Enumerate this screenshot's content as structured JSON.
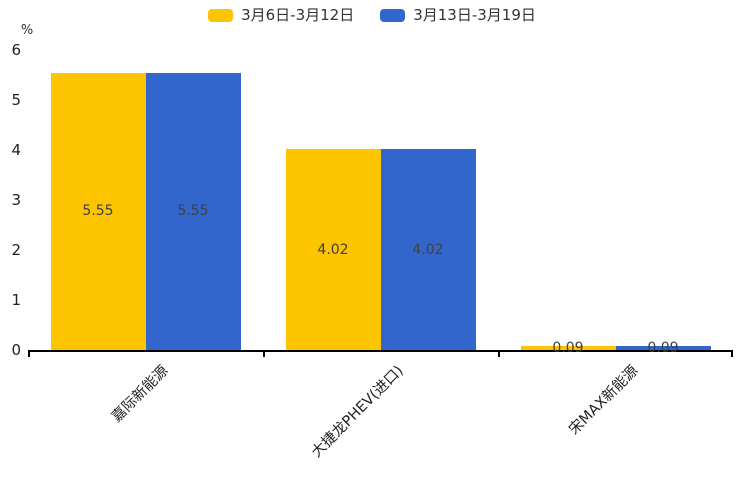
{
  "chart_data": {
    "type": "bar",
    "title": "",
    "categories": [
      "嘉际新能源",
      "大捷龙PHEV(进口)",
      "宋MAX新能源"
    ],
    "series": [
      {
        "name": "3月6日-3月12日",
        "color": "#FDC500",
        "values": [
          5.55,
          4.02,
          0.09
        ]
      },
      {
        "name": "3月13日-3月19日",
        "color": "#3366CC",
        "values": [
          5.55,
          4.02,
          0.09
        ]
      }
    ],
    "value_labels": [
      [
        "5.55",
        "4.02",
        "0.09"
      ],
      [
        "5.55",
        "4.02",
        "0.09"
      ]
    ],
    "xlabel": "",
    "ylabel": "%",
    "ylim": [
      0,
      6
    ],
    "yticks": [
      0,
      1,
      2,
      3,
      4,
      5,
      6
    ],
    "grid": false,
    "legend_position": "top",
    "bar_label_color": "#404040",
    "axis_color": "#000000"
  }
}
